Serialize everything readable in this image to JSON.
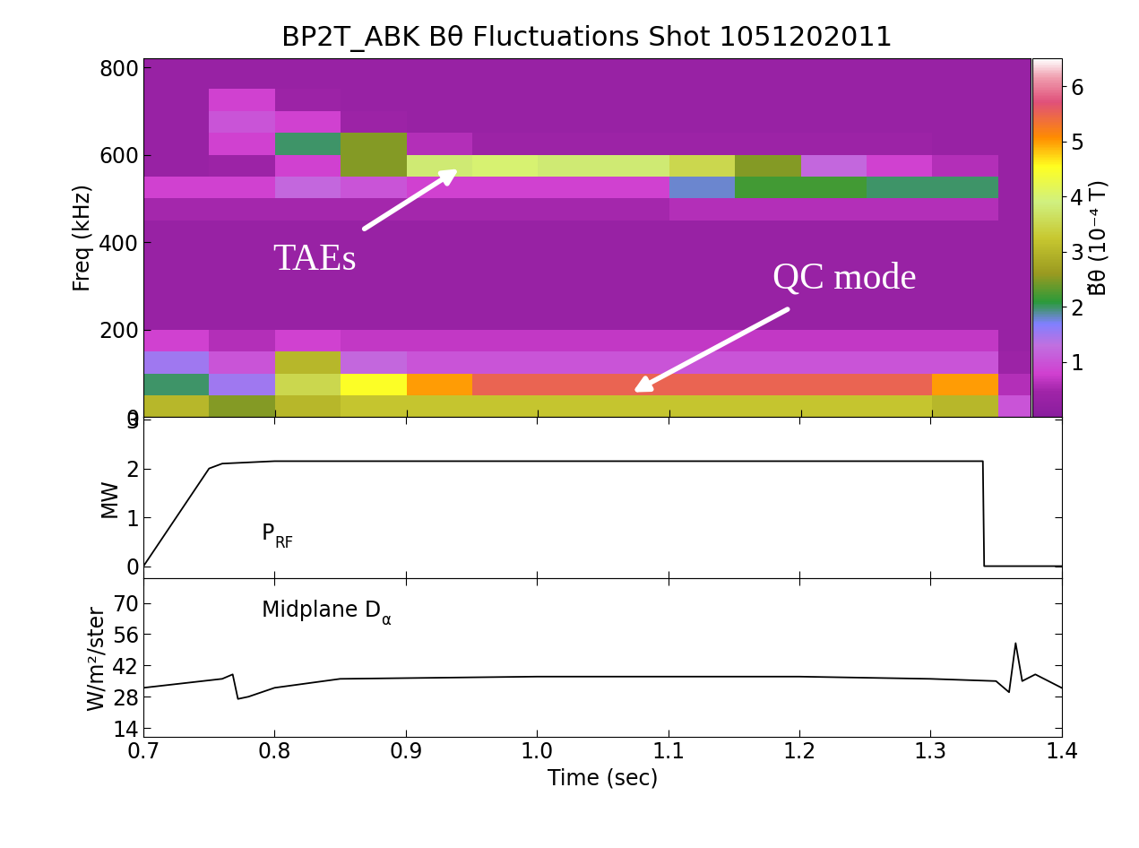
{
  "chart_data": [
    {
      "type": "heatmap",
      "title": "BP2T_ABK Bθ Fluctuations Shot 1051202011",
      "y_label": "Freq (kHz)",
      "tick_labels": "y",
      "x_edges": [
        0.7,
        0.75,
        0.8,
        0.85,
        0.9,
        0.95,
        1.0,
        1.05,
        1.1,
        1.15,
        1.2,
        1.25,
        1.3,
        1.35,
        1.375
      ],
      "y_edges": [
        0,
        50,
        100,
        150,
        200,
        250,
        300,
        350,
        400,
        450,
        500,
        550,
        600,
        650,
        700,
        750,
        800,
        820
      ],
      "cells": [
        [
          3.0,
          2.5,
          3.0,
          3.2,
          3.2,
          3.2,
          3.2,
          3.2,
          3.2,
          3.2,
          3.2,
          3.2,
          3.0,
          1.0
        ],
        [
          2.0,
          1.5,
          3.5,
          4.5,
          5.0,
          5.5,
          5.5,
          5.5,
          5.5,
          5.5,
          5.5,
          5.5,
          5.0,
          0.6
        ],
        [
          1.5,
          1.0,
          3.0,
          1.2,
          1.0,
          1.0,
          1.0,
          1.0,
          1.0,
          1.0,
          1.0,
          1.0,
          1.0,
          0.4
        ],
        [
          0.8,
          0.6,
          0.8,
          0.7,
          0.7,
          0.7,
          0.7,
          0.7,
          0.7,
          0.7,
          0.7,
          0.7,
          0.7,
          0.3
        ],
        [
          0.3,
          0.3,
          0.3,
          0.3,
          0.3,
          0.3,
          0.3,
          0.3,
          0.3,
          0.3,
          0.3,
          0.3,
          0.3,
          0.3
        ],
        [
          0.3,
          0.3,
          0.3,
          0.3,
          0.3,
          0.3,
          0.3,
          0.3,
          0.3,
          0.3,
          0.3,
          0.3,
          0.3,
          0.3
        ],
        [
          0.3,
          0.3,
          0.3,
          0.3,
          0.3,
          0.3,
          0.3,
          0.3,
          0.3,
          0.3,
          0.3,
          0.3,
          0.3,
          0.3
        ],
        [
          0.3,
          0.3,
          0.3,
          0.3,
          0.3,
          0.3,
          0.3,
          0.3,
          0.3,
          0.3,
          0.3,
          0.3,
          0.3,
          0.3
        ],
        [
          0.3,
          0.3,
          0.3,
          0.3,
          0.3,
          0.3,
          0.3,
          0.3,
          0.3,
          0.3,
          0.3,
          0.3,
          0.3,
          0.3
        ],
        [
          0.5,
          0.5,
          0.5,
          0.5,
          0.5,
          0.5,
          0.5,
          0.5,
          0.6,
          0.6,
          0.6,
          0.6,
          0.6,
          0.3
        ],
        [
          0.8,
          0.8,
          1.2,
          1.0,
          0.8,
          0.8,
          0.8,
          0.8,
          1.8,
          2.2,
          2.2,
          2.0,
          2.0,
          0.3
        ],
        [
          0.3,
          0.4,
          0.8,
          2.5,
          3.8,
          4.0,
          3.8,
          3.8,
          3.5,
          2.5,
          1.2,
          0.8,
          0.6,
          0.3
        ],
        [
          0.3,
          0.8,
          2.0,
          2.5,
          0.6,
          0.4,
          0.4,
          0.4,
          0.4,
          0.4,
          0.4,
          0.4,
          0.3,
          0.3
        ],
        [
          0.3,
          1.0,
          0.8,
          0.4,
          0.3,
          0.3,
          0.3,
          0.3,
          0.3,
          0.3,
          0.3,
          0.3,
          0.3,
          0.3
        ],
        [
          0.3,
          0.8,
          0.4,
          0.3,
          0.3,
          0.3,
          0.3,
          0.3,
          0.3,
          0.3,
          0.3,
          0.3,
          0.3,
          0.3
        ],
        [
          0.3,
          0.3,
          0.3,
          0.3,
          0.3,
          0.3,
          0.3,
          0.3,
          0.3,
          0.3,
          0.3,
          0.3,
          0.3,
          0.3
        ],
        [
          0.3,
          0.3,
          0.3,
          0.3,
          0.3,
          0.3,
          0.3,
          0.3,
          0.3,
          0.3,
          0.3,
          0.3,
          0.3,
          0.3
        ]
      ],
      "xlim": [
        0.7,
        1.375
      ],
      "xticks": [
        0.7,
        0.8,
        0.9,
        1.0,
        1.1,
        1.2,
        1.3
      ],
      "ylim": [
        0,
        820
      ],
      "yticks": [
        0,
        200,
        400,
        600,
        800
      ],
      "colorbar_label": "B̃θ (10⁻⁴ T)",
      "colorbar_range": [
        0,
        6.5
      ],
      "colorbar_ticks": [
        1,
        2,
        3,
        4,
        5,
        6
      ],
      "annotations": [
        {
          "text": "TAEs",
          "xy": [
            0.94,
            568
          ],
          "xytext": [
            0.83,
            358
          ]
        },
        {
          "text": "QC mode",
          "xy": [
            1.072,
            57
          ],
          "xytext": [
            1.233,
            316
          ]
        }
      ]
    },
    {
      "type": "line",
      "y_label": "MW",
      "label": [
        "P",
        "RF"
      ],
      "label_xy": [
        0.79,
        0.55
      ],
      "tick_labels": "y",
      "x": [
        0.7,
        0.75,
        0.76,
        0.8,
        0.9,
        1.0,
        1.1,
        1.2,
        1.3,
        1.34,
        1.341,
        1.4
      ],
      "values": [
        0,
        2.0,
        2.1,
        2.15,
        2.15,
        2.15,
        2.15,
        2.15,
        2.15,
        2.15,
        0,
        0
      ],
      "color": "#000000",
      "xlim": [
        0.7,
        1.4
      ],
      "xticks": [
        0.7,
        0.8,
        0.9,
        1.0,
        1.1,
        1.2,
        1.3,
        1.4
      ],
      "ylim": [
        -0.25,
        3.05
      ],
      "yticks": [
        0,
        1,
        2,
        3
      ]
    },
    {
      "type": "line",
      "y_label": "W/m²/ster",
      "x_label": "Time (sec)",
      "label": [
        "Midplane D",
        "α"
      ],
      "label_xy": [
        0.79,
        64
      ],
      "x": [
        0.7,
        0.76,
        0.768,
        0.772,
        0.78,
        0.8,
        0.85,
        1.0,
        1.2,
        1.3,
        1.35,
        1.36,
        1.365,
        1.37,
        1.38,
        1.4
      ],
      "values": [
        32,
        36,
        38,
        27,
        28,
        32,
        36,
        37,
        37,
        36,
        35,
        30,
        52,
        35,
        38,
        32
      ],
      "color": "#000000",
      "xlim": [
        0.7,
        1.4
      ],
      "xticks": [
        0.7,
        0.8,
        0.9,
        1.0,
        1.1,
        1.2,
        1.3,
        1.4
      ],
      "ylim": [
        10,
        81
      ],
      "yticks": [
        14,
        28,
        42,
        56,
        70
      ]
    }
  ]
}
